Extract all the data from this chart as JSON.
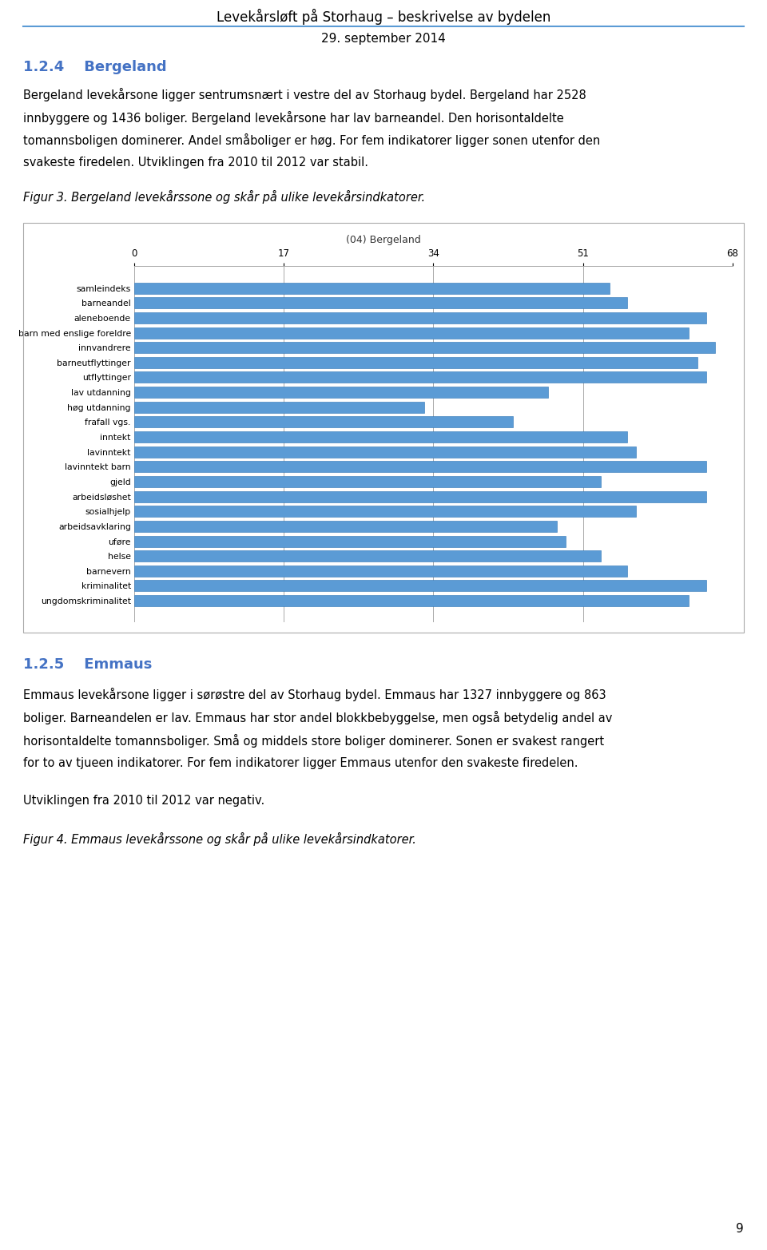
{
  "page_title": "Levekårsløft på Storhaug – beskrivelse av bydelen",
  "page_subtitle": "29. september 2014",
  "section_title": "1.2.4    Bergeland",
  "section_title_color": "#4472C4",
  "body1_lines": [
    "Bergeland levekårsone ligger sentrumsnært i vestre del av Storhaug bydel. Bergeland har 2528",
    "innbyggere og 1436 boliger. Bergeland levekårsone har lav barneandel. Den horisontaldelte",
    "tomannsboligen dominerer. Andel småboliger er høg. For fem indikatorer ligger sonen utenfor den",
    "svakeste firedelen. Utviklingen fra 2010 til 2012 var stabil."
  ],
  "figure_caption": "Figur 3. Bergeland levekårssone og skår på ulike levekårsindkatorer.",
  "chart_title": "(04) Bergeland",
  "chart_xlim": [
    0,
    68
  ],
  "chart_xticks": [
    0,
    17,
    34,
    51,
    68
  ],
  "chart_bar_color": "#5B9BD5",
  "chart_bar_edge_color": "#2E75B6",
  "chart_bg_color": "#E8E8E8",
  "chart_categories": [
    "samleindeks",
    "barneandel",
    "aleneboende",
    "barn med enslige foreldre",
    "innvandrere",
    "barneutflyttinger",
    "utflyttinger",
    "lav utdanning",
    "høg utdanning",
    "frafall vgs.",
    "inntekt",
    "lavinntekt",
    "lavinntekt barn",
    "gjeld",
    "arbeidsløshet",
    "sosialhjelp",
    "arbeidsavklaring",
    "uføre",
    "helse",
    "barnevern",
    "kriminalitet",
    "ungdomskriminalitet"
  ],
  "chart_values": [
    54,
    56,
    65,
    63,
    66,
    64,
    65,
    47,
    33,
    43,
    56,
    57,
    65,
    53,
    65,
    57,
    48,
    49,
    53,
    56,
    65,
    63
  ],
  "section2_title": "1.2.5    Emmaus",
  "section2_title_color": "#4472C4",
  "body2_lines": [
    "Emmaus levekårsone ligger i sørøstre del av Storhaug bydel. Emmaus har 1327 innbyggere og 863",
    "boliger. Barneandelen er lav. Emmaus har stor andel blokkbebyggelse, men også betydelig andel av",
    "horisontaldelte tomannsboliger. Små og middels store boliger dominerer. Sonen er svakest rangert",
    "for to av tjueen indikatorer. For fem indikatorer ligger Emmaus utenfor den svakeste firedelen."
  ],
  "body_text_3": "Utviklingen fra 2010 til 2012 var negativ.",
  "figure2_caption": "Figur 4. Emmaus levekårssone og skår på ulike levekårsindkatorer.",
  "page_number": "9",
  "background_color": "#FFFFFF",
  "text_color": "#000000",
  "grid_color": "#AAAAAA",
  "border_color": "#AAAAAA"
}
